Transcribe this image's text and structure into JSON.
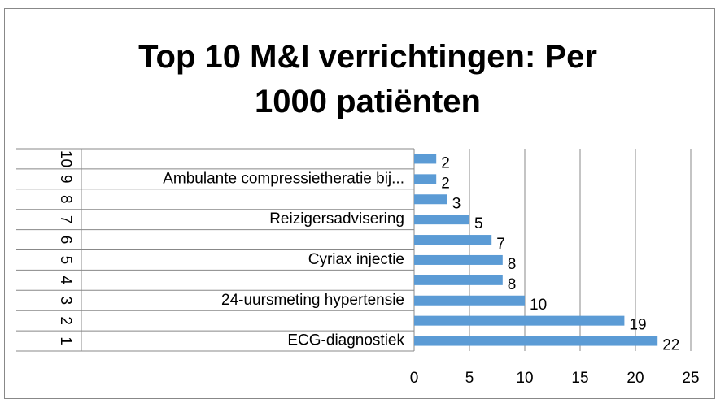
{
  "chart_data": {
    "type": "bar",
    "orientation": "horizontal",
    "title": "Top 10 M&I verrichtingen: Per 1000 patiënten",
    "ranks": [
      "1",
      "2",
      "3",
      "4",
      "5",
      "6",
      "7",
      "8",
      "9",
      "10"
    ],
    "categories": [
      "ECG-diagnostiek",
      null,
      "24-uursmeting hypertensie",
      null,
      "Cyriax injectie",
      null,
      "Reizigersadvisering",
      null,
      "Ambulante compressietheratie bij...",
      null
    ],
    "values": [
      22,
      19,
      10,
      8,
      8,
      7,
      5,
      3,
      2,
      2
    ],
    "color": "#5b9bd5",
    "xlim": [
      0,
      25
    ],
    "xticks": [
      0,
      5,
      10,
      15,
      20,
      25
    ],
    "grid": true
  }
}
